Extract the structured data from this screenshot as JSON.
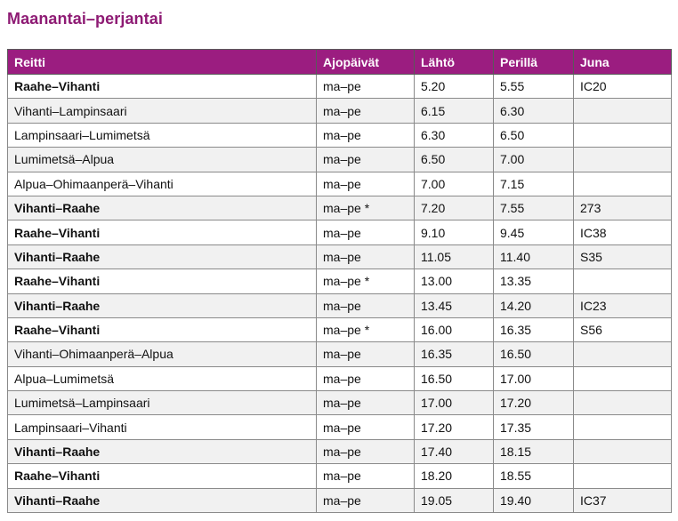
{
  "title": "Maanantai–perjantai",
  "headers": [
    "Reitti",
    "Ajopäivät",
    "Lähtö",
    "Perillä",
    "Juna"
  ],
  "rows": [
    {
      "route": "Raahe–Vihanti",
      "days": "ma–pe",
      "dep": "5.20",
      "arr": "5.55",
      "train": "IC20",
      "bold": true
    },
    {
      "route": "Vihanti–Lampinsaari",
      "days": "ma–pe",
      "dep": "6.15",
      "arr": "6.30",
      "train": "",
      "bold": false
    },
    {
      "route": "Lampinsaari–Lumimetsä",
      "days": "ma–pe",
      "dep": "6.30",
      "arr": "6.50",
      "train": "",
      "bold": false
    },
    {
      "route": "Lumimetsä–Alpua",
      "days": "ma–pe",
      "dep": "6.50",
      "arr": "7.00",
      "train": "",
      "bold": false
    },
    {
      "route": "Alpua–Ohimaanperä–Vihanti",
      "days": "ma–pe",
      "dep": "7.00",
      "arr": "7.15",
      "train": "",
      "bold": false
    },
    {
      "route": "Vihanti–Raahe",
      "days": "ma–pe *",
      "dep": "7.20",
      "arr": "7.55",
      "train": "273",
      "bold": true
    },
    {
      "route": "Raahe–Vihanti",
      "days": "ma–pe",
      "dep": "9.10",
      "arr": "9.45",
      "train": "IC38",
      "bold": true
    },
    {
      "route": "Vihanti–Raahe",
      "days": "ma–pe",
      "dep": "11.05",
      "arr": "11.40",
      "train": "S35",
      "bold": true
    },
    {
      "route": "Raahe–Vihanti",
      "days": "ma–pe *",
      "dep": "13.00",
      "arr": "13.35",
      "train": "",
      "bold": true
    },
    {
      "route": "Vihanti–Raahe",
      "days": "ma–pe",
      "dep": "13.45",
      "arr": "14.20",
      "train": "IC23",
      "bold": true
    },
    {
      "route": "Raahe–Vihanti",
      "days": "ma–pe *",
      "dep": "16.00",
      "arr": "16.35",
      "train": "S56",
      "bold": true
    },
    {
      "route": "Vihanti–Ohimaanperä–Alpua",
      "days": "ma–pe",
      "dep": "16.35",
      "arr": "16.50",
      "train": "",
      "bold": false
    },
    {
      "route": "Alpua–Lumimetsä",
      "days": "ma–pe",
      "dep": "16.50",
      "arr": "17.00",
      "train": "",
      "bold": false
    },
    {
      "route": "Lumimetsä–Lampinsaari",
      "days": "ma–pe",
      "dep": "17.00",
      "arr": "17.20",
      "train": "",
      "bold": false
    },
    {
      "route": "Lampinsaari–Vihanti",
      "days": "ma–pe",
      "dep": "17.20",
      "arr": "17.35",
      "train": "",
      "bold": false
    },
    {
      "route": "Vihanti–Raahe",
      "days": "ma–pe",
      "dep": "17.40",
      "arr": "18.15",
      "train": "",
      "bold": true
    },
    {
      "route": "Raahe–Vihanti",
      "days": "ma–pe",
      "dep": "18.20",
      "arr": "18.55",
      "train": "",
      "bold": true
    },
    {
      "route": "Vihanti–Raahe",
      "days": "ma–pe",
      "dep": "19.05",
      "arr": "19.40",
      "train": "IC37",
      "bold": true
    }
  ],
  "colors": {
    "title": "#8e1b74",
    "header_bg": "#9b1d80",
    "header_text": "#ffffff",
    "row_alt": "#f1f1f1"
  }
}
